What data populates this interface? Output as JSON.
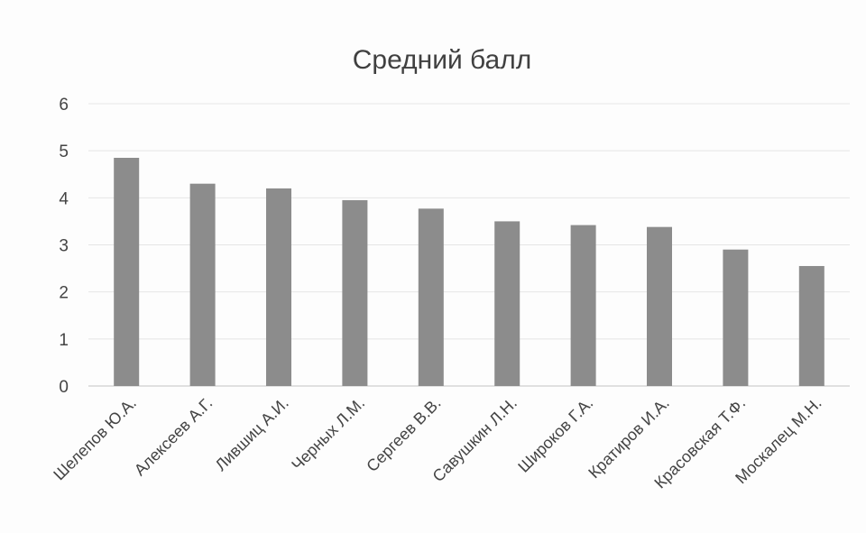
{
  "chart_data": {
    "type": "bar",
    "title": "Средний балл",
    "xlabel": "",
    "ylabel": "",
    "categories": [
      "Шелепов Ю.А.",
      "Алексеев А.Г.",
      "Лившиц А.И.",
      "Черных Л.М.",
      "Сергеев В.В.",
      "Савушкин Л.Н.",
      "Широков Г.А.",
      "Кратиров И.А.",
      "Красовская Т.Ф.",
      "Москалец М.Н."
    ],
    "values": [
      4.85,
      4.3,
      4.2,
      3.95,
      3.77,
      3.5,
      3.42,
      3.38,
      2.9,
      2.55
    ],
    "ylim": [
      0,
      6
    ],
    "yticks": [
      "0",
      "1",
      "2",
      "3",
      "4",
      "5",
      "6"
    ],
    "grid": true,
    "legend": "none",
    "colors": {
      "bar": "#8c8c8c",
      "grid": "#e6e6e6",
      "text": "#444444"
    }
  }
}
